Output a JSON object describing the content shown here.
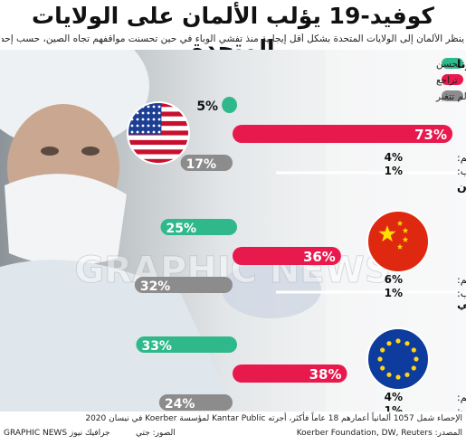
{
  "header": {
    "title": "كوفيد-19 يؤلب الألمان على الولايات المتحدة",
    "subtitle": "ينظر الألمان إلى الولايات المتحدة بشكل أقل إيجابية منذ تفشي الوباء في حين تحسنت مواقفهم تجاه الصين، حسب إحصاء"
  },
  "chart_data": {
    "type": "bar",
    "legend": [
      {
        "key": "improved",
        "label": "تحسن",
        "color": "#2fb88a"
      },
      {
        "key": "worsened",
        "label": "تراجع",
        "color": "#e8194d"
      },
      {
        "key": "unchanged",
        "label": "لم تتغير",
        "color": "#8c8c8c"
      }
    ],
    "unit": "%",
    "groups": [
      {
        "title": "رأيهم في الولايات المتحدة بشأن أزمة فيروس كورونا",
        "flag": "usa-flag",
        "improved": 5,
        "worsened": 73,
        "unchanged": 17,
        "dont_know_label": "لا أعلم:",
        "dont_know": 4,
        "no_answer_label": "لا جواب:",
        "no_answer": 1
      },
      {
        "title": "رأيهم في الصين",
        "flag": "china-flag",
        "improved": 25,
        "worsened": 36,
        "unchanged": 32,
        "dont_know_label": "لا أعلم:",
        "dont_know": 6,
        "no_answer_label": "لا جواب:",
        "no_answer": 1
      },
      {
        "title": "رأيهم في الاتحاد الأوروبي",
        "flag": "eu-flag",
        "improved": 33,
        "worsened": 38,
        "unchanged": 24,
        "dont_know_label": "لا أعلم:",
        "dont_know": 4,
        "no_answer_label": "لا جواب:",
        "no_answer": 1
      }
    ]
  },
  "watermark": "GRAPHIC NEWS",
  "footer": {
    "note": "الإحصاء شمل 1057 ألمانياً أعمارهم 18 عاماً فأكثر، أجرته Kantar Public لمؤسسة Koerber في نيسان 2020",
    "source": "المصدر: Koerber Foundation, DW, Reuters",
    "photo_credit": "الصور: جتي",
    "brand": "GRAPHIC NEWS جرافيك نيوز"
  }
}
